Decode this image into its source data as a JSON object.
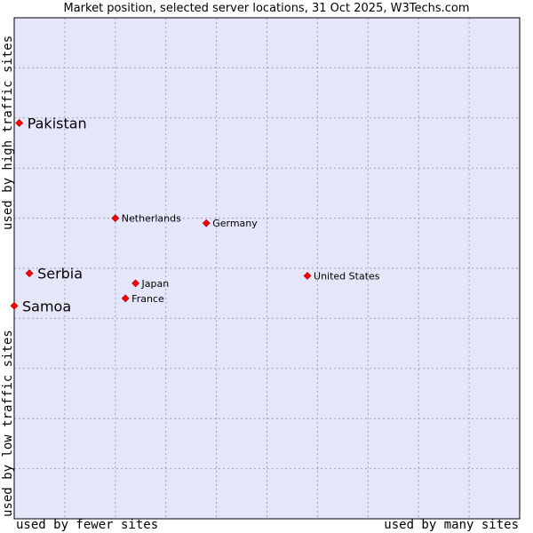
{
  "chart_data": {
    "type": "scatter",
    "title": "Market position, selected server locations, 31 Oct 2025, W3Techs.com",
    "xlabel_left": "used by fewer sites",
    "xlabel_right": "used by many sites",
    "ylabel_top": "used by high traffic sites",
    "ylabel_bottom": "used by low traffic sites",
    "xlim": [
      0,
      100
    ],
    "ylim": [
      0,
      100
    ],
    "grid": true,
    "point_color": "#ff0000",
    "background_color": "#e6e6fa",
    "points": [
      {
        "name": "Pakistan",
        "x": 1,
        "y": 79,
        "emphasis": true
      },
      {
        "name": "Netherlands",
        "x": 20,
        "y": 60,
        "emphasis": false
      },
      {
        "name": "Germany",
        "x": 38,
        "y": 59,
        "emphasis": false
      },
      {
        "name": "Serbia",
        "x": 3,
        "y": 49,
        "emphasis": true
      },
      {
        "name": "United States",
        "x": 58,
        "y": 48.5,
        "emphasis": false
      },
      {
        "name": "Japan",
        "x": 24,
        "y": 47,
        "emphasis": false
      },
      {
        "name": "France",
        "x": 22,
        "y": 44,
        "emphasis": false
      },
      {
        "name": "Samoa",
        "x": 0,
        "y": 42.5,
        "emphasis": true
      }
    ]
  }
}
